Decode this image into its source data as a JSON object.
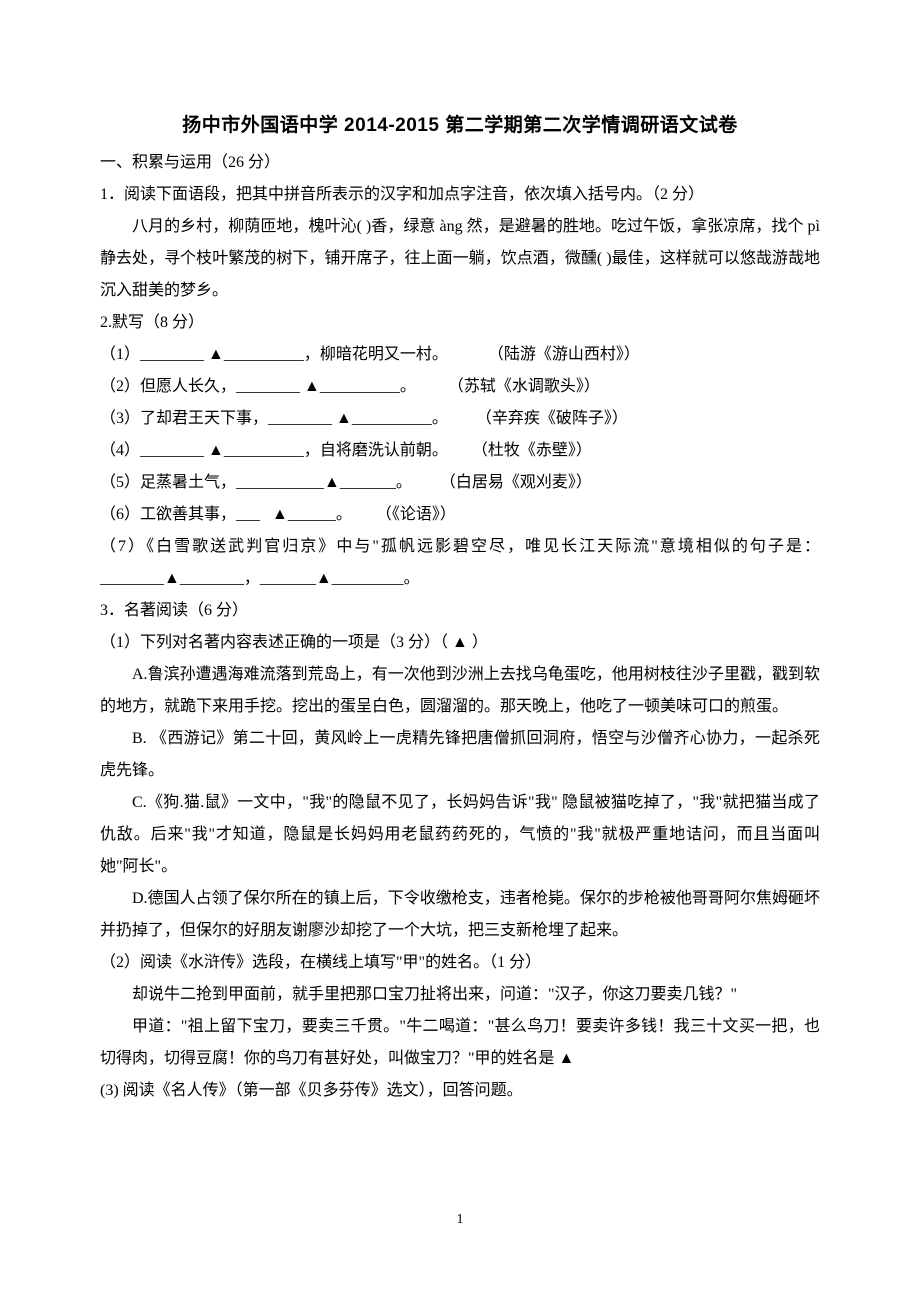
{
  "title": "扬中市外国语中学 2014-2015 第二学期第二次学情调研语文试卷",
  "section1_heading": "一、积累与运用（26 分）",
  "q1_intro": "1．阅读下面语段，把其中拼音所表示的汉字和加点字注音，依次填入括号内。（2 分）",
  "q1_body": "八月的乡村，柳荫匝地，槐叶沁(  )香，绿意 àng 然，是避暑的胜地。吃过午饭，拿张凉席，找个 pì 静去处，寻个枝叶繁茂的树下，铺开席子，往上面一躺，饮点酒，微醺(  )最佳，这样就可以悠哉游哉地沉入甜美的梦乡。",
  "q2_heading": "2.默写（8 分）",
  "q2_1": "（1）________ ▲__________，柳暗花明又一村。          （陆游《游山西村》）",
  "q2_2": "（2）但愿人长久，________ ▲__________。        （苏轼《水调歌头》）",
  "q2_3": "（3）了却君王天下事，________ ▲__________。       （辛弃疾《破阵子》）",
  "q2_4": "（4）________ ▲__________，自将磨洗认前朝。      （杜牧《赤壁》）",
  "q2_5": "（5）足蒸暑土气，___________▲_______。       （白居易《观刈麦》）",
  "q2_6": "（6）工欲善其事，___   ▲______。      （《论语》）",
  "q2_7": "（7）《白雪歌送武判官归京》中与\"孤帆远影碧空尽，唯见长江天际流\"意境相似的句子是：________▲________，_______▲_________。",
  "q3_heading": "3．名著阅读（6 分）",
  "q3_1_intro": "（1）下列对名著内容表述正确的一项是（3 分）（  ▲  ）",
  "q3_1_A": "A.鲁滨孙遭遇海难流落到荒岛上，有一次他到沙洲上去找乌龟蛋吃，他用树枝往沙子里戳，戳到软的地方，就跪下来用手挖。挖出的蛋呈白色，圆溜溜的。那天晚上，他吃了一顿美味可口的煎蛋。",
  "q3_1_B": "B.  《西游记》第二十回，黄风岭上一虎精先锋把唐僧抓回洞府，悟空与沙僧齐心协力，一起杀死虎先锋。",
  "q3_1_C": "C.《狗.猫.鼠》一文中，\"我\"的隐鼠不见了，长妈妈告诉\"我\"  隐鼠被猫吃掉了，\"我\"就把猫当成了仇敌。后来\"我\"才知道，隐鼠是长妈妈用老鼠药药死的，气愤的\"我\"就极严重地诘问，而且当面叫她\"阿长\"。",
  "q3_1_D": "D.德国人占领了保尔所在的镇上后，下令收缴枪支，违者枪毙。保尔的步枪被他哥哥阿尔焦姆砸坏并扔掉了，但保尔的好朋友谢廖沙却挖了一个大坑，把三支新枪埋了起来。",
  "q3_2_intro": "（2）阅读《水浒传》选段，在横线上填写\"甲\"的姓名。（1 分）",
  "q3_2_body1": "却说牛二抢到甲面前，就手里把那口宝刀扯将出来，问道：\"汉子，你这刀要卖几钱？\"",
  "q3_2_body2": "甲道：\"祖上留下宝刀，要卖三千贯。\"牛二喝道：\"甚么鸟刀！要卖许多钱！我三十文买一把，也切得肉，切得豆腐！你的鸟刀有甚好处，叫做宝刀？\"甲的姓名是   ▲  ",
  "q3_3_intro": "(3)  阅读《名人传》（第一部《贝多芬传》选文），回答问题。",
  "page_number": "1"
}
